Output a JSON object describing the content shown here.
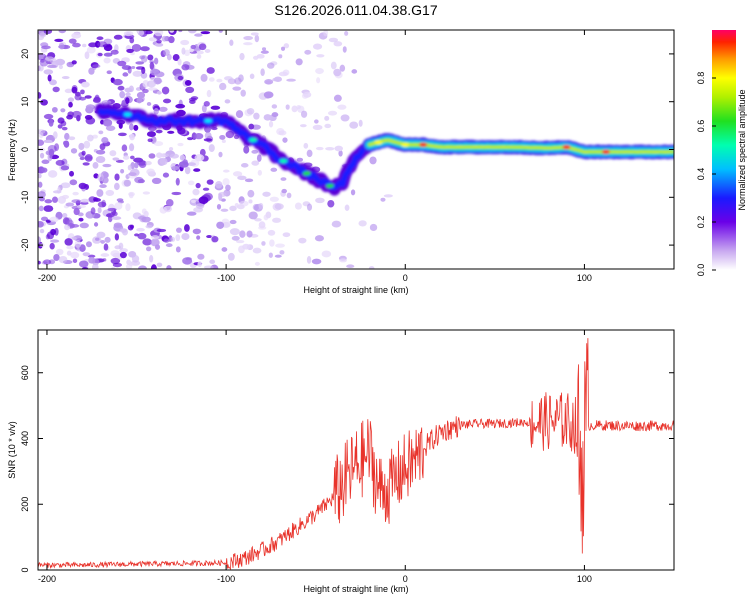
{
  "figure_title": "S126.2026.011.04.38.G17",
  "colors": {
    "snr_line": "#e8332b",
    "spectrogram_background": "#ffffff",
    "axis": "#000000"
  },
  "chart_data": [
    {
      "type": "heatmap",
      "name": "spectrogram",
      "xlabel": "Height of straight line (km)",
      "ylabel": "Frequency (Hz)",
      "xlim": [
        -205,
        150
      ],
      "ylim": [
        -25,
        25
      ],
      "xticks": [
        -200,
        -100,
        0,
        100
      ],
      "yticks": [
        -20,
        -10,
        0,
        10,
        20
      ],
      "colorbar": {
        "label": "Normalized spectral amplitude",
        "range": [
          0.0,
          1.0
        ],
        "ticks": [
          "0.0",
          "0.2",
          "0.4",
          "0.6",
          "0.8"
        ],
        "tick_values": [
          0.0,
          0.2,
          0.4,
          0.6,
          0.8
        ]
      },
      "ridge": {
        "x": [
          -165,
          -150,
          -140,
          -130,
          -115,
          -100,
          -90,
          -80,
          -70,
          -60,
          -50,
          -40,
          -35,
          -30,
          -25,
          -20,
          -10,
          0,
          10,
          20,
          40,
          60,
          80,
          90,
          100,
          150
        ],
        "y": [
          8,
          7,
          6,
          6,
          6,
          6,
          3,
          1,
          -2,
          -4,
          -6,
          -8,
          -7,
          -3,
          -1,
          1,
          2,
          1,
          1,
          0.5,
          0.5,
          0.5,
          0.3,
          0.5,
          -0.5,
          -0.5
        ]
      }
    },
    {
      "type": "line",
      "name": "snr",
      "xlabel": "Height of straight line (km)",
      "ylabel": "SNR (10 * v/v)",
      "xlim": [
        -205,
        150
      ],
      "ylim": [
        0,
        730
      ],
      "xticks": [
        -200,
        -100,
        0,
        100
      ],
      "yticks": [
        0,
        200,
        400,
        600
      ],
      "series": [
        {
          "name": "SNR",
          "x": [
            -205,
            -180,
            -150,
            -120,
            -100,
            -90,
            -80,
            -70,
            -60,
            -50,
            -40,
            -30,
            -25,
            -20,
            -15,
            -10,
            -5,
            0,
            5,
            10,
            20,
            30,
            40,
            50,
            60,
            70,
            80,
            90,
            95,
            98,
            100,
            102,
            110,
            130,
            150
          ],
          "y": [
            15,
            15,
            18,
            20,
            22,
            35,
            60,
            90,
            130,
            170,
            220,
            300,
            330,
            360,
            250,
            240,
            280,
            310,
            330,
            370,
            420,
            440,
            445,
            445,
            448,
            450,
            452,
            455,
            440,
            300,
            400,
            440,
            440,
            438,
            440
          ]
        }
      ]
    }
  ]
}
